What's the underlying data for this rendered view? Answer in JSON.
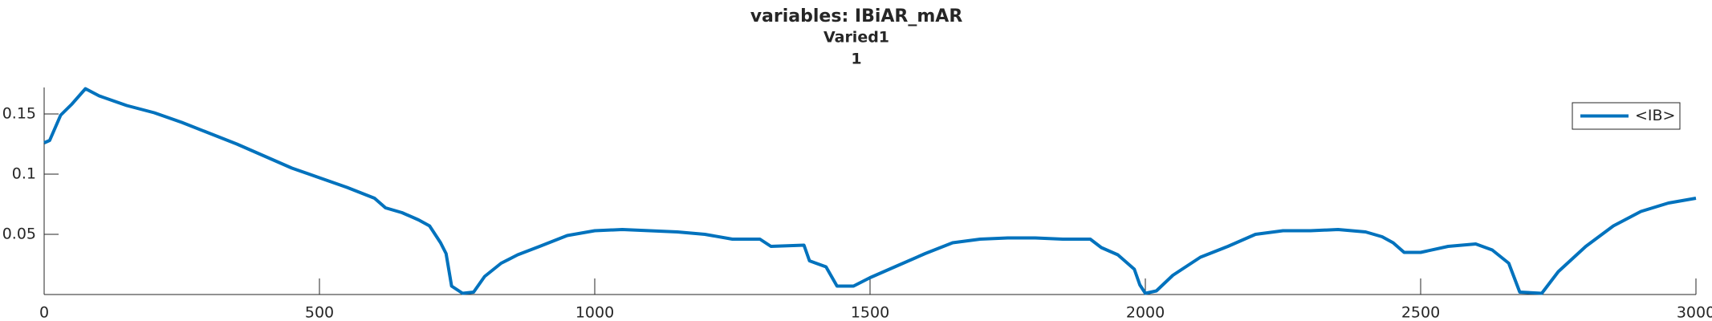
{
  "chart_data": {
    "type": "line",
    "title": "variables: IBiAR_mAR",
    "subtitle": "Varied1",
    "subtitle2": "1",
    "x": [
      0,
      10,
      30,
      50,
      75,
      100,
      150,
      200,
      250,
      300,
      350,
      400,
      450,
      500,
      550,
      600,
      620,
      650,
      680,
      700,
      720,
      730,
      740,
      760,
      780,
      800,
      830,
      860,
      900,
      950,
      1000,
      1050,
      1100,
      1150,
      1200,
      1250,
      1300,
      1320,
      1380,
      1390,
      1420,
      1440,
      1470,
      1500,
      1550,
      1600,
      1650,
      1700,
      1750,
      1800,
      1850,
      1900,
      1920,
      1950,
      1980,
      1990,
      2000,
      2020,
      2050,
      2100,
      2150,
      2200,
      2250,
      2300,
      2350,
      2400,
      2430,
      2450,
      2470,
      2500,
      2550,
      2600,
      2630,
      2660,
      2680,
      2720,
      2750,
      2800,
      2850,
      2900,
      2950,
      3000
    ],
    "series": [
      {
        "name": "<IB>",
        "color": "#0072bd",
        "values": [
          0.126,
          0.128,
          0.149,
          0.158,
          0.171,
          0.165,
          0.157,
          0.151,
          0.143,
          0.134,
          0.125,
          0.115,
          0.105,
          0.097,
          0.089,
          0.08,
          0.072,
          0.068,
          0.062,
          0.057,
          0.043,
          0.034,
          0.007,
          0.001,
          0.002,
          0.015,
          0.026,
          0.033,
          0.04,
          0.049,
          0.053,
          0.054,
          0.053,
          0.052,
          0.05,
          0.046,
          0.046,
          0.04,
          0.041,
          0.028,
          0.023,
          0.007,
          0.007,
          0.014,
          0.024,
          0.034,
          0.043,
          0.046,
          0.047,
          0.047,
          0.046,
          0.046,
          0.039,
          0.033,
          0.021,
          0.008,
          0.001,
          0.003,
          0.016,
          0.031,
          0.04,
          0.05,
          0.053,
          0.053,
          0.054,
          0.052,
          0.048,
          0.043,
          0.035,
          0.035,
          0.04,
          0.042,
          0.037,
          0.026,
          0.002,
          0.001,
          0.019,
          0.04,
          0.057,
          0.069,
          0.076,
          0.08
        ]
      }
    ],
    "xlim": [
      0,
      3000
    ],
    "xticks": [
      0,
      500,
      1000,
      1500,
      2000,
      2500,
      3000
    ],
    "ylim": [
      0,
      0.172
    ],
    "yticks": [
      0.05,
      0.1,
      0.15
    ],
    "grid": false,
    "legend": "upper right"
  }
}
